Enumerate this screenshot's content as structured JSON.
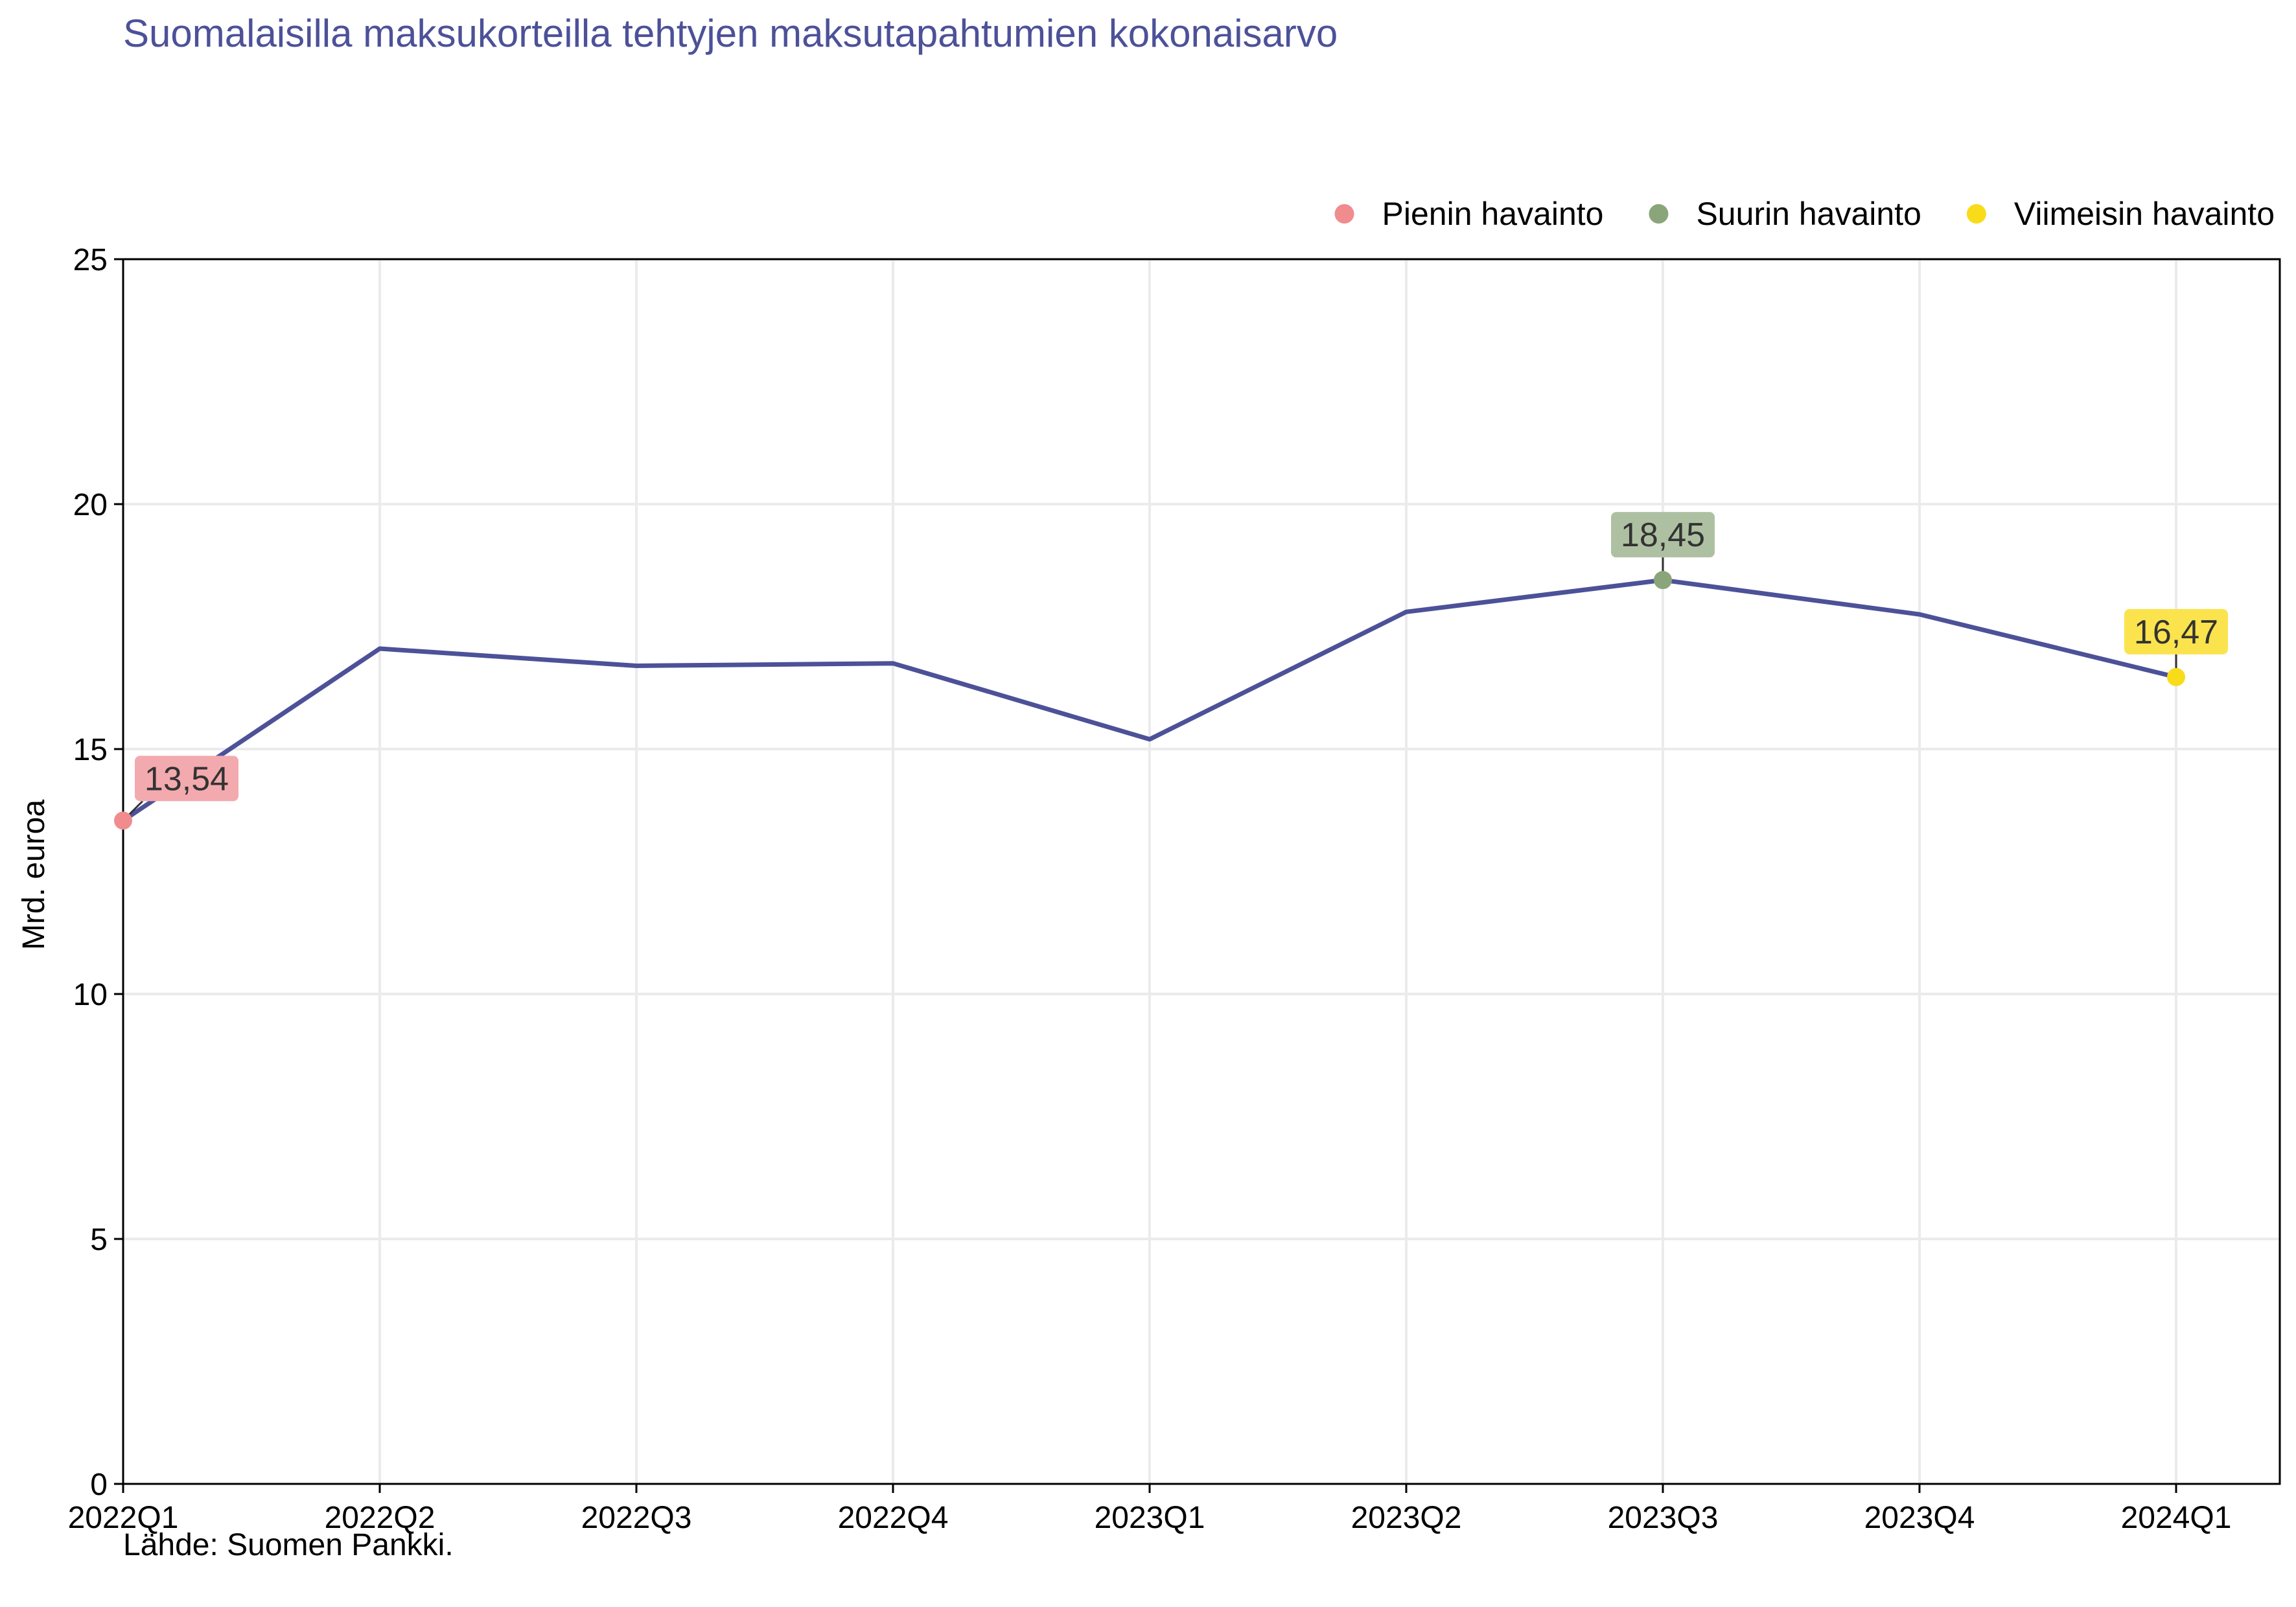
{
  "chart_data": {
    "type": "line",
    "title": "Suomalaisilla maksukorteilla tehtyjen maksutapahtumien kokonaisarvo",
    "xlabel": "",
    "ylabel": "Mrd. euroa",
    "source": "Lähde: Suomen Pankki.",
    "categories": [
      "2022Q1",
      "2022Q2",
      "2022Q3",
      "2022Q4",
      "2023Q1",
      "2023Q2",
      "2023Q3",
      "2023Q4",
      "2024Q1"
    ],
    "series": [
      {
        "values": [
          13.54,
          17.05,
          16.7,
          16.75,
          15.2,
          17.8,
          18.45,
          17.75,
          16.47
        ]
      }
    ],
    "ylim": [
      0,
      25
    ],
    "yticks": [
      "0",
      "5",
      "10",
      "15",
      "20",
      "25"
    ],
    "grid": true,
    "legend_position": "top-right",
    "legend": [
      {
        "label": "Pienin havainto",
        "color": "#F08C8E"
      },
      {
        "label": "Suurin havainto",
        "color": "#8BA57A"
      },
      {
        "label": "Viimeisin havainto",
        "color": "#F8DC1A"
      }
    ],
    "highlights": [
      {
        "index": 0,
        "label": "13,54",
        "dot_color": "#F08C8E",
        "box_color": "#F3AAAE"
      },
      {
        "index": 6,
        "label": "18,45",
        "dot_color": "#8BA57A",
        "box_color": "#AEC0A2"
      },
      {
        "index": 8,
        "label": "16,47",
        "dot_color": "#F8DC1A",
        "box_color": "#FBE34E"
      }
    ],
    "colors": {
      "line": "#4C5198",
      "title": "#4C5198",
      "grid": "#EBEBEB",
      "axis": "#000000"
    }
  }
}
